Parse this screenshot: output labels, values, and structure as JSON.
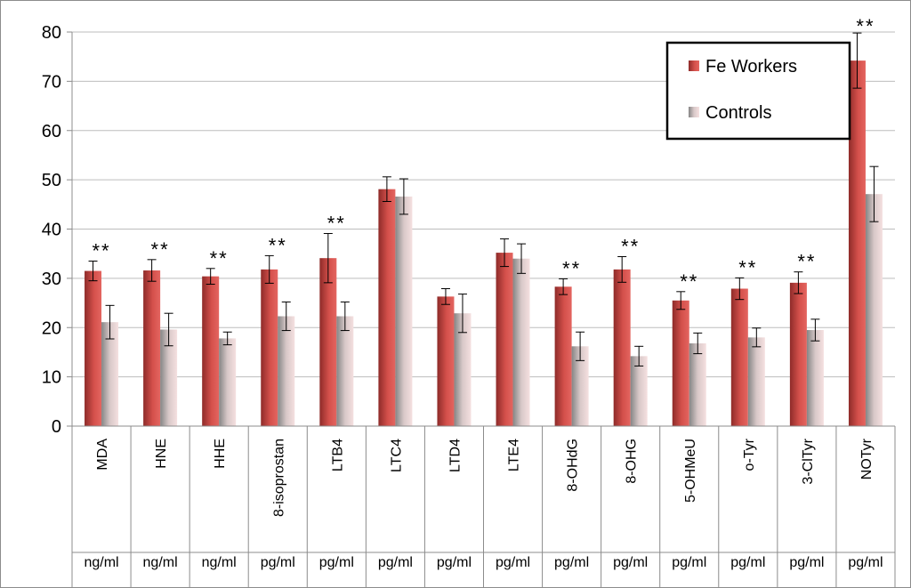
{
  "chart_data": {
    "type": "bar",
    "categories": [
      "MDA",
      "HNE",
      "HHE",
      "8-isoprostan",
      "LTB4",
      "LTC4",
      "LTD4",
      "LTE4",
      "8-OHdG",
      "8-OHG",
      "5-OHMeU",
      "o-Tyr",
      "3-ClTyr",
      "NOTyr"
    ],
    "units": [
      "ng/ml",
      "ng/ml",
      "ng/ml",
      "pg/ml",
      "pg/ml",
      "pg/ml",
      "pg/ml",
      "pg/ml",
      "pg/ml",
      "pg/ml",
      "pg/ml",
      "pg/ml",
      "pg/ml",
      "pg/ml"
    ],
    "significance": [
      "**",
      "**",
      "**",
      "**",
      "**",
      "",
      "",
      "",
      "**",
      "**",
      "**",
      "**",
      "**",
      "**"
    ],
    "series": [
      {
        "name": "Fe Workers",
        "values": [
          31.5,
          31.6,
          30.4,
          31.8,
          34.1,
          48.1,
          26.3,
          35.2,
          28.3,
          31.8,
          25.5,
          27.9,
          29.1,
          74.2
        ],
        "errors": [
          2.0,
          2.2,
          1.6,
          2.8,
          5.0,
          2.5,
          1.6,
          2.8,
          1.6,
          2.6,
          1.8,
          2.2,
          2.2,
          5.6
        ]
      },
      {
        "name": "Controls",
        "values": [
          21.1,
          19.6,
          17.8,
          22.3,
          22.3,
          46.6,
          22.9,
          34.0,
          16.2,
          14.2,
          16.8,
          18.0,
          19.5,
          47.1
        ],
        "errors": [
          3.4,
          3.3,
          1.3,
          2.9,
          2.9,
          3.6,
          3.9,
          3.0,
          2.9,
          2.0,
          2.1,
          1.9,
          2.2,
          5.6
        ]
      }
    ],
    "ylim": [
      0,
      80
    ],
    "yticks": [
      0,
      10,
      20,
      30,
      40,
      50,
      60,
      70,
      80
    ],
    "grid": true,
    "legend_position": "top-right",
    "colors": {
      "fe_dark": "#8e2b29",
      "fe_light": "#e05a55",
      "ctrl_dark": "#8a8a8a",
      "ctrl_light": "#f3dcdc"
    }
  }
}
